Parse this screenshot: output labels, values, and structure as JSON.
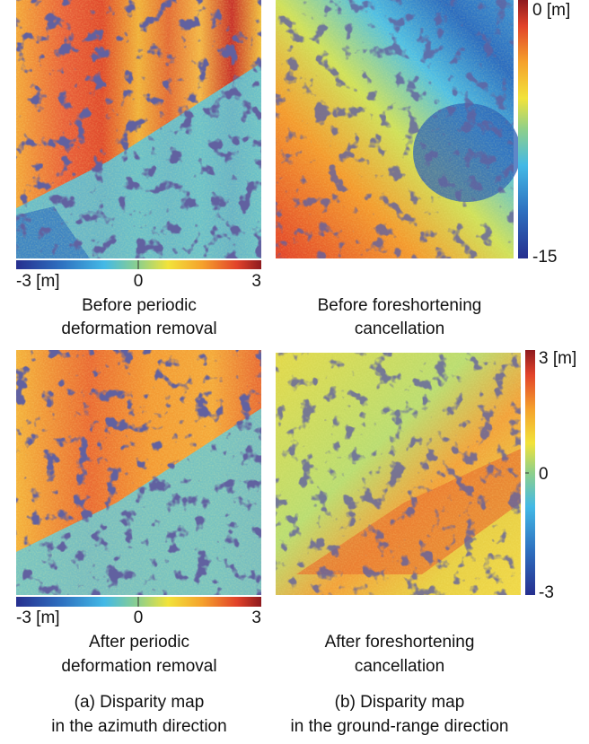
{
  "panels": [
    {
      "caption": [
        "Before periodic",
        "deformation removal"
      ],
      "colorbar": [
        "-3 [m]",
        "0",
        "3"
      ]
    },
    {
      "caption": [
        "Before foreshortening",
        "cancellation"
      ],
      "colorbar": [
        "0 [m]",
        "-15"
      ]
    },
    {
      "caption": [
        "After periodic",
        "deformation removal"
      ],
      "colorbar": [
        "-3 [m]",
        "0",
        "3"
      ]
    },
    {
      "caption": [
        "After foreshortening",
        "cancellation"
      ],
      "colorbar": [
        "3 [m]",
        "0",
        "-3"
      ]
    }
  ],
  "columns": [
    [
      "(a) Disparity map",
      "in the azimuth direction"
    ],
    [
      "(b) Disparity map",
      "in the ground-range direction"
    ]
  ]
}
